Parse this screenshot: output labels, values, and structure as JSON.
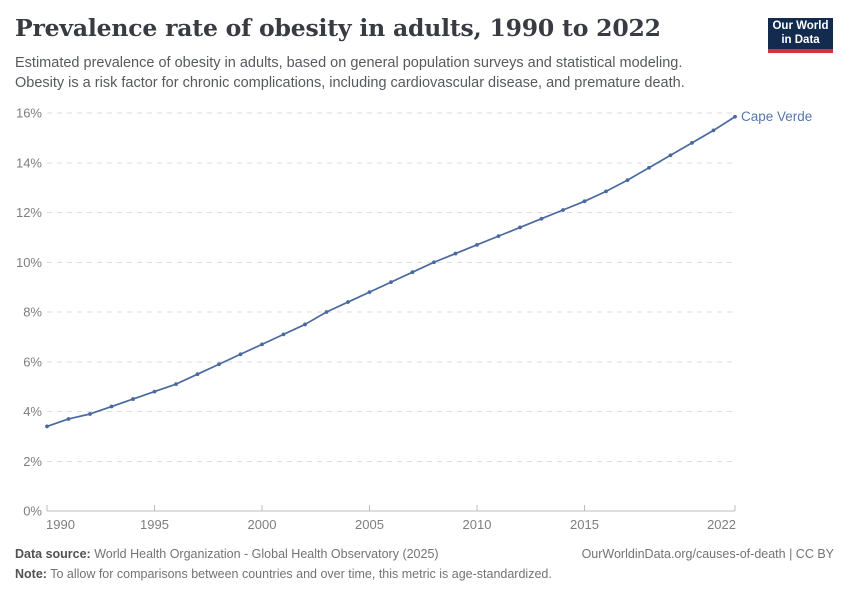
{
  "header": {
    "title": "Prevalence rate of obesity in adults, 1990 to 2022",
    "subtitle_line1": "Estimated prevalence of obesity in adults, based on general population surveys and statistical modeling.",
    "subtitle_line2": "Obesity is a risk factor for chronic complications, including cardiovascular disease, and premature death.",
    "logo": {
      "line1": "Our World",
      "line2": "in Data",
      "bg_color": "#122b4e",
      "accent_color": "#d13438"
    }
  },
  "chart_data": {
    "type": "line",
    "title": "Prevalence rate of obesity in adults, 1990 to 2022",
    "entity_label": "Cape Verde",
    "entity_label_color": "#5777ac",
    "x": [
      1990,
      1991,
      1992,
      1993,
      1994,
      1995,
      1996,
      1997,
      1998,
      1999,
      2000,
      2001,
      2002,
      2003,
      2004,
      2005,
      2006,
      2007,
      2008,
      2009,
      2010,
      2011,
      2012,
      2013,
      2014,
      2015,
      2016,
      2017,
      2018,
      2019,
      2020,
      2021,
      2022
    ],
    "series": [
      {
        "name": "Cape Verde",
        "color": "#4a699e",
        "values": [
          3.4,
          3.7,
          3.9,
          4.2,
          4.5,
          4.8,
          5.1,
          5.5,
          5.9,
          6.3,
          6.7,
          7.1,
          7.5,
          8.0,
          8.4,
          8.8,
          9.2,
          9.6,
          10.0,
          10.35,
          10.7,
          11.05,
          11.4,
          11.75,
          12.1,
          12.45,
          12.85,
          13.3,
          13.8,
          14.3,
          14.8,
          15.3,
          15.85
        ]
      }
    ],
    "xlabel": "",
    "ylabel": "",
    "xlim": [
      1990,
      2022
    ],
    "ylim": [
      0,
      16
    ],
    "x_ticks": [
      1990,
      1995,
      2000,
      2005,
      2010,
      2015,
      2022
    ],
    "y_ticks": [
      0,
      2,
      4,
      6,
      8,
      10,
      12,
      14,
      16
    ],
    "y_tick_format": "{v}%",
    "grid": "horizontal-dashed",
    "legend_position": "end-of-line-label",
    "markers": true
  },
  "footer": {
    "data_source_label": "Data source:",
    "data_source_text": " World Health Organization - Global Health Observatory (2025)",
    "link_text": "OurWorldinData.org/causes-of-death | CC BY",
    "note_label": "Note:",
    "note_text": " To allow for comparisons between countries and over time, this metric is age-standardized."
  }
}
